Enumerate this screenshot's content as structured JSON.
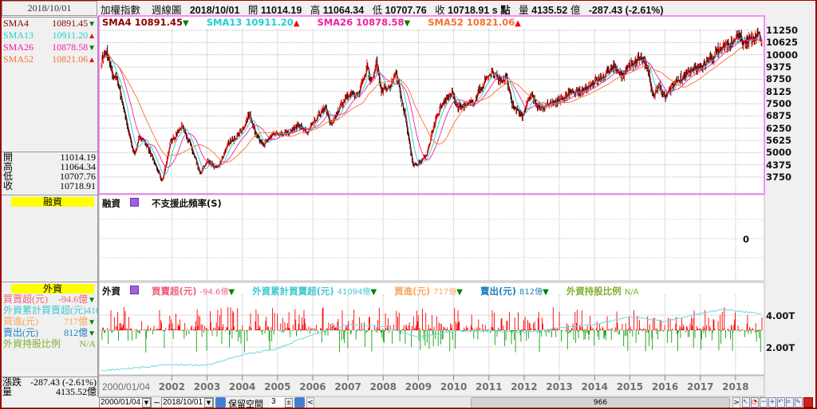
{
  "header": {
    "date": "2018/10/01",
    "title": "加權指數",
    "period": "週線圖",
    "bar_date": "2018/10/01",
    "open_label": "開",
    "open": "11014.19",
    "high_label": "高",
    "high": "11064.34",
    "low_label": "低",
    "low": "10707.76",
    "close_label": "收",
    "close": "10718.91",
    "unit": "s 點",
    "vol_label": "量",
    "volume": "4135.52",
    "vol_unit": "億",
    "change": "-287.43 (-2.61%)"
  },
  "sma": [
    {
      "name": "SMA4",
      "value": "10891.45",
      "dir": "down",
      "color": "#8b0000"
    },
    {
      "name": "SMA13",
      "value": "10911.20",
      "dir": "up",
      "color": "#20d0d0"
    },
    {
      "name": "SMA26",
      "value": "10878.58",
      "dir": "down",
      "color": "#f020a0"
    },
    {
      "name": "SMA52",
      "value": "10821.06",
      "dir": "up",
      "color": "#f87030"
    }
  ],
  "ohlc": [
    {
      "label": "開",
      "value": "11014.19"
    },
    {
      "label": "高",
      "value": "11064.34"
    },
    {
      "label": "低",
      "value": "10707.76"
    },
    {
      "label": "收",
      "value": "10718.91"
    }
  ],
  "margin": {
    "title": "融資",
    "panel_label": "融資",
    "message": "不支援此頻率(S)",
    "zero_tick": "0"
  },
  "foreign": {
    "title": "外資",
    "panel_label": "外資",
    "items": [
      {
        "label": "買賣超(元)",
        "value": "-94.6億",
        "dir": "down",
        "color": "#f06080"
      },
      {
        "label": "外資累計買賣超(元)",
        "value": "41094億",
        "dir": "down",
        "color": "#40c8d0"
      },
      {
        "label": "買進(元)",
        "value": "717億",
        "dir": "down",
        "color": "#f8a860"
      },
      {
        "label": "賣出(元)",
        "value": "812億",
        "dir": "down",
        "color": "#2080c0"
      },
      {
        "label": "外資持股比例",
        "value": "N/A",
        "dir": "",
        "color": "#80b030"
      }
    ],
    "ticks": [
      "4.00T",
      "2.00T"
    ]
  },
  "summary": {
    "change_label": "漲跌",
    "change": "-287.43 (-2.61%)",
    "vol_label": "量",
    "volume": "4135.52億"
  },
  "toolbar": {
    "start_date": "2000/01/04",
    "tilde": "~",
    "end_date": "2018/10/01",
    "keep_space_label": "保留空間",
    "keep_space": "3",
    "scroll_value": "966"
  },
  "chart_data": {
    "type": "candlestick",
    "bars": 966,
    "price_ticks": [
      11250,
      10625,
      10000,
      9375,
      8750,
      8125,
      7500,
      6875,
      6250,
      5625,
      5000,
      4375,
      3750
    ],
    "x_labels": [
      "2000/01/04",
      "2002",
      "2003",
      "2004",
      "2005",
      "2006",
      "2007",
      "2008",
      "2009",
      "2010",
      "2011",
      "2012",
      "2013",
      "2014",
      "2015",
      "2016",
      "2017",
      "2018"
    ],
    "close_anchors": [
      [
        2000.0,
        9700
      ],
      [
        2000.15,
        10200
      ],
      [
        2000.3,
        9000
      ],
      [
        2000.45,
        8800
      ],
      [
        2000.6,
        7500
      ],
      [
        2000.8,
        5800
      ],
      [
        2000.95,
        4800
      ],
      [
        2001.05,
        5900
      ],
      [
        2001.3,
        5300
      ],
      [
        2001.55,
        4300
      ],
      [
        2001.72,
        3500
      ],
      [
        2001.95,
        5500
      ],
      [
        2002.3,
        6400
      ],
      [
        2002.5,
        5500
      ],
      [
        2002.8,
        3900
      ],
      [
        2003.0,
        4600
      ],
      [
        2003.3,
        4200
      ],
      [
        2003.6,
        5500
      ],
      [
        2003.95,
        6000
      ],
      [
        2004.2,
        7000
      ],
      [
        2004.4,
        5800
      ],
      [
        2004.6,
        5400
      ],
      [
        2004.9,
        6000
      ],
      [
        2005.3,
        6000
      ],
      [
        2005.6,
        6400
      ],
      [
        2005.85,
        6000
      ],
      [
        2006.0,
        6500
      ],
      [
        2006.35,
        7400
      ],
      [
        2006.5,
        6400
      ],
      [
        2006.9,
        7800
      ],
      [
        2007.3,
        8000
      ],
      [
        2007.55,
        9500
      ],
      [
        2007.65,
        8500
      ],
      [
        2007.8,
        9700
      ],
      [
        2007.95,
        8200
      ],
      [
        2008.2,
        8300
      ],
      [
        2008.35,
        9200
      ],
      [
        2008.6,
        7000
      ],
      [
        2008.85,
        4300
      ],
      [
        2008.95,
        4400
      ],
      [
        2009.2,
        4800
      ],
      [
        2009.5,
        6800
      ],
      [
        2009.7,
        7500
      ],
      [
        2009.95,
        8100
      ],
      [
        2010.1,
        7300
      ],
      [
        2010.4,
        7400
      ],
      [
        2010.6,
        7700
      ],
      [
        2010.95,
        8900
      ],
      [
        2011.1,
        9100
      ],
      [
        2011.3,
        8700
      ],
      [
        2011.5,
        8800
      ],
      [
        2011.65,
        7400
      ],
      [
        2011.95,
        6900
      ],
      [
        2012.2,
        8000
      ],
      [
        2012.4,
        7200
      ],
      [
        2012.6,
        7400
      ],
      [
        2012.9,
        7600
      ],
      [
        2013.3,
        8000
      ],
      [
        2013.6,
        8100
      ],
      [
        2013.95,
        8600
      ],
      [
        2014.3,
        8900
      ],
      [
        2014.5,
        9500
      ],
      [
        2014.8,
        8900
      ],
      [
        2014.95,
        9300
      ],
      [
        2015.3,
        9900
      ],
      [
        2015.5,
        9300
      ],
      [
        2015.65,
        7800
      ],
      [
        2015.8,
        8400
      ],
      [
        2016.0,
        7800
      ],
      [
        2016.3,
        8600
      ],
      [
        2016.6,
        9000
      ],
      [
        2016.95,
        9300
      ],
      [
        2017.3,
        9800
      ],
      [
        2017.6,
        10400
      ],
      [
        2017.95,
        10600
      ],
      [
        2018.1,
        11100
      ],
      [
        2018.2,
        10500
      ],
      [
        2018.5,
        10900
      ],
      [
        2018.65,
        11000
      ],
      [
        2018.75,
        10718.91
      ]
    ],
    "foreign_cum_anchors_T": [
      [
        2000.0,
        0.5
      ],
      [
        2002.0,
        0.9
      ],
      [
        2003.0,
        0.85
      ],
      [
        2004.0,
        1.5
      ],
      [
        2005.0,
        1.9
      ],
      [
        2006.0,
        2.8
      ],
      [
        2007.0,
        3.4
      ],
      [
        2008.0,
        3.3
      ],
      [
        2009.0,
        2.6
      ],
      [
        2010.0,
        3.0
      ],
      [
        2011.0,
        3.0
      ],
      [
        2012.0,
        2.9
      ],
      [
        2013.0,
        3.2
      ],
      [
        2014.0,
        3.4
      ],
      [
        2015.0,
        3.9
      ],
      [
        2016.0,
        3.6
      ],
      [
        2017.0,
        4.1
      ],
      [
        2017.6,
        4.35
      ],
      [
        2018.75,
        4.1
      ]
    ]
  }
}
